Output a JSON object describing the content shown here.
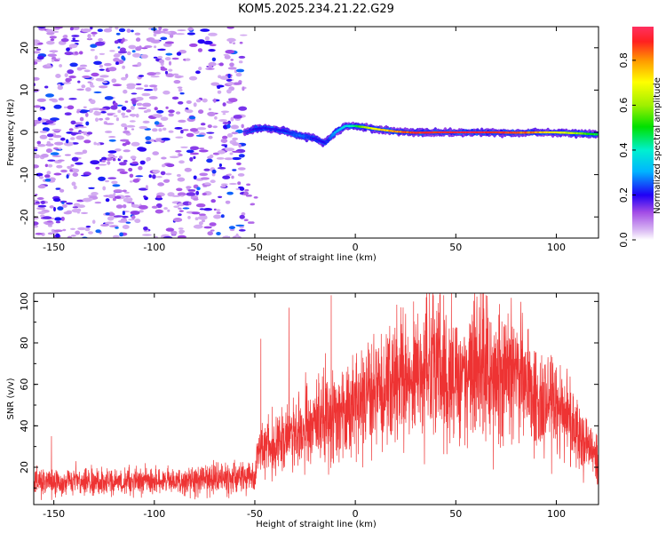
{
  "title": "KOM5.2025.234.21.22.G29",
  "colors": {
    "snr_line": "#ee3333",
    "frame": "#000000",
    "background": "#ffffff"
  },
  "chart_data": [
    {
      "type": "heatmap",
      "name": "spectrogram",
      "xlabel": "Height of straight line (km)",
      "ylabel": "Frequency (Hz)",
      "xlim": [
        -160,
        121
      ],
      "ylim": [
        -25,
        25
      ],
      "xticks": [
        -150,
        -100,
        -50,
        0,
        50,
        100
      ],
      "yticks": [
        20,
        10,
        0,
        -10,
        -20
      ],
      "colorbar": {
        "label": "Normalized spectral amplitude",
        "range": [
          0,
          0.95
        ],
        "ticks": [
          0.0,
          0.2,
          0.4,
          0.6,
          0.8
        ]
      },
      "noise_region_x": [
        -160,
        -55
      ],
      "noise_amplitude_range": [
        0.05,
        0.25
      ],
      "doppler_track": {
        "x": [
          -55,
          -50,
          -45,
          -40,
          -35,
          -30,
          -25,
          -20,
          -15,
          -12,
          -10,
          -5,
          0,
          5,
          10,
          20,
          30,
          40,
          50,
          60,
          70,
          80,
          90,
          100,
          110,
          121
        ],
        "freq_hz": [
          0.0,
          0.8,
          1.0,
          0.7,
          0.3,
          -0.5,
          -1.0,
          -1.5,
          -2.5,
          -1.0,
          0.0,
          1.5,
          1.5,
          1.2,
          0.8,
          0.2,
          -0.1,
          0.0,
          0.0,
          0.0,
          0.0,
          -0.1,
          0.0,
          0.0,
          -0.2,
          -0.5
        ],
        "amplitude": [
          0.15,
          0.2,
          0.2,
          0.2,
          0.2,
          0.25,
          0.25,
          0.2,
          0.2,
          0.25,
          0.3,
          0.35,
          0.45,
          0.6,
          0.7,
          0.8,
          0.88,
          0.9,
          0.95,
          0.95,
          0.9,
          0.85,
          0.8,
          0.7,
          0.6,
          0.45
        ]
      }
    },
    {
      "type": "line",
      "name": "snr",
      "xlabel": "Height of straight line (km)",
      "ylabel": "SNR (v/v)",
      "xlim": [
        -160,
        121
      ],
      "ylim": [
        2,
        104
      ],
      "xticks": [
        -150,
        -100,
        -50,
        0,
        50,
        100
      ],
      "yticks": [
        20,
        40,
        60,
        80,
        100
      ],
      "series": [
        {
          "name": "SNR",
          "x": [
            -160,
            -140,
            -120,
            -100,
            -80,
            -60,
            -52,
            -50,
            -48,
            -40,
            -30,
            -20,
            -10,
            0,
            10,
            20,
            30,
            40,
            50,
            60,
            70,
            80,
            90,
            100,
            110,
            121
          ],
          "mean": [
            13,
            13,
            13,
            13,
            14,
            15,
            15,
            14,
            28,
            30,
            35,
            40,
            45,
            50,
            56,
            60,
            63,
            65,
            66,
            66,
            65,
            62,
            55,
            48,
            38,
            22
          ],
          "peaks": [
            {
              "x": -12,
              "y": 103
            },
            {
              "x": 29,
              "y": 100
            },
            {
              "x": 44,
              "y": 103
            },
            {
              "x": 65,
              "y": 103
            },
            {
              "x": -33,
              "y": 97
            },
            {
              "x": -47,
              "y": 82
            }
          ]
        }
      ]
    }
  ]
}
